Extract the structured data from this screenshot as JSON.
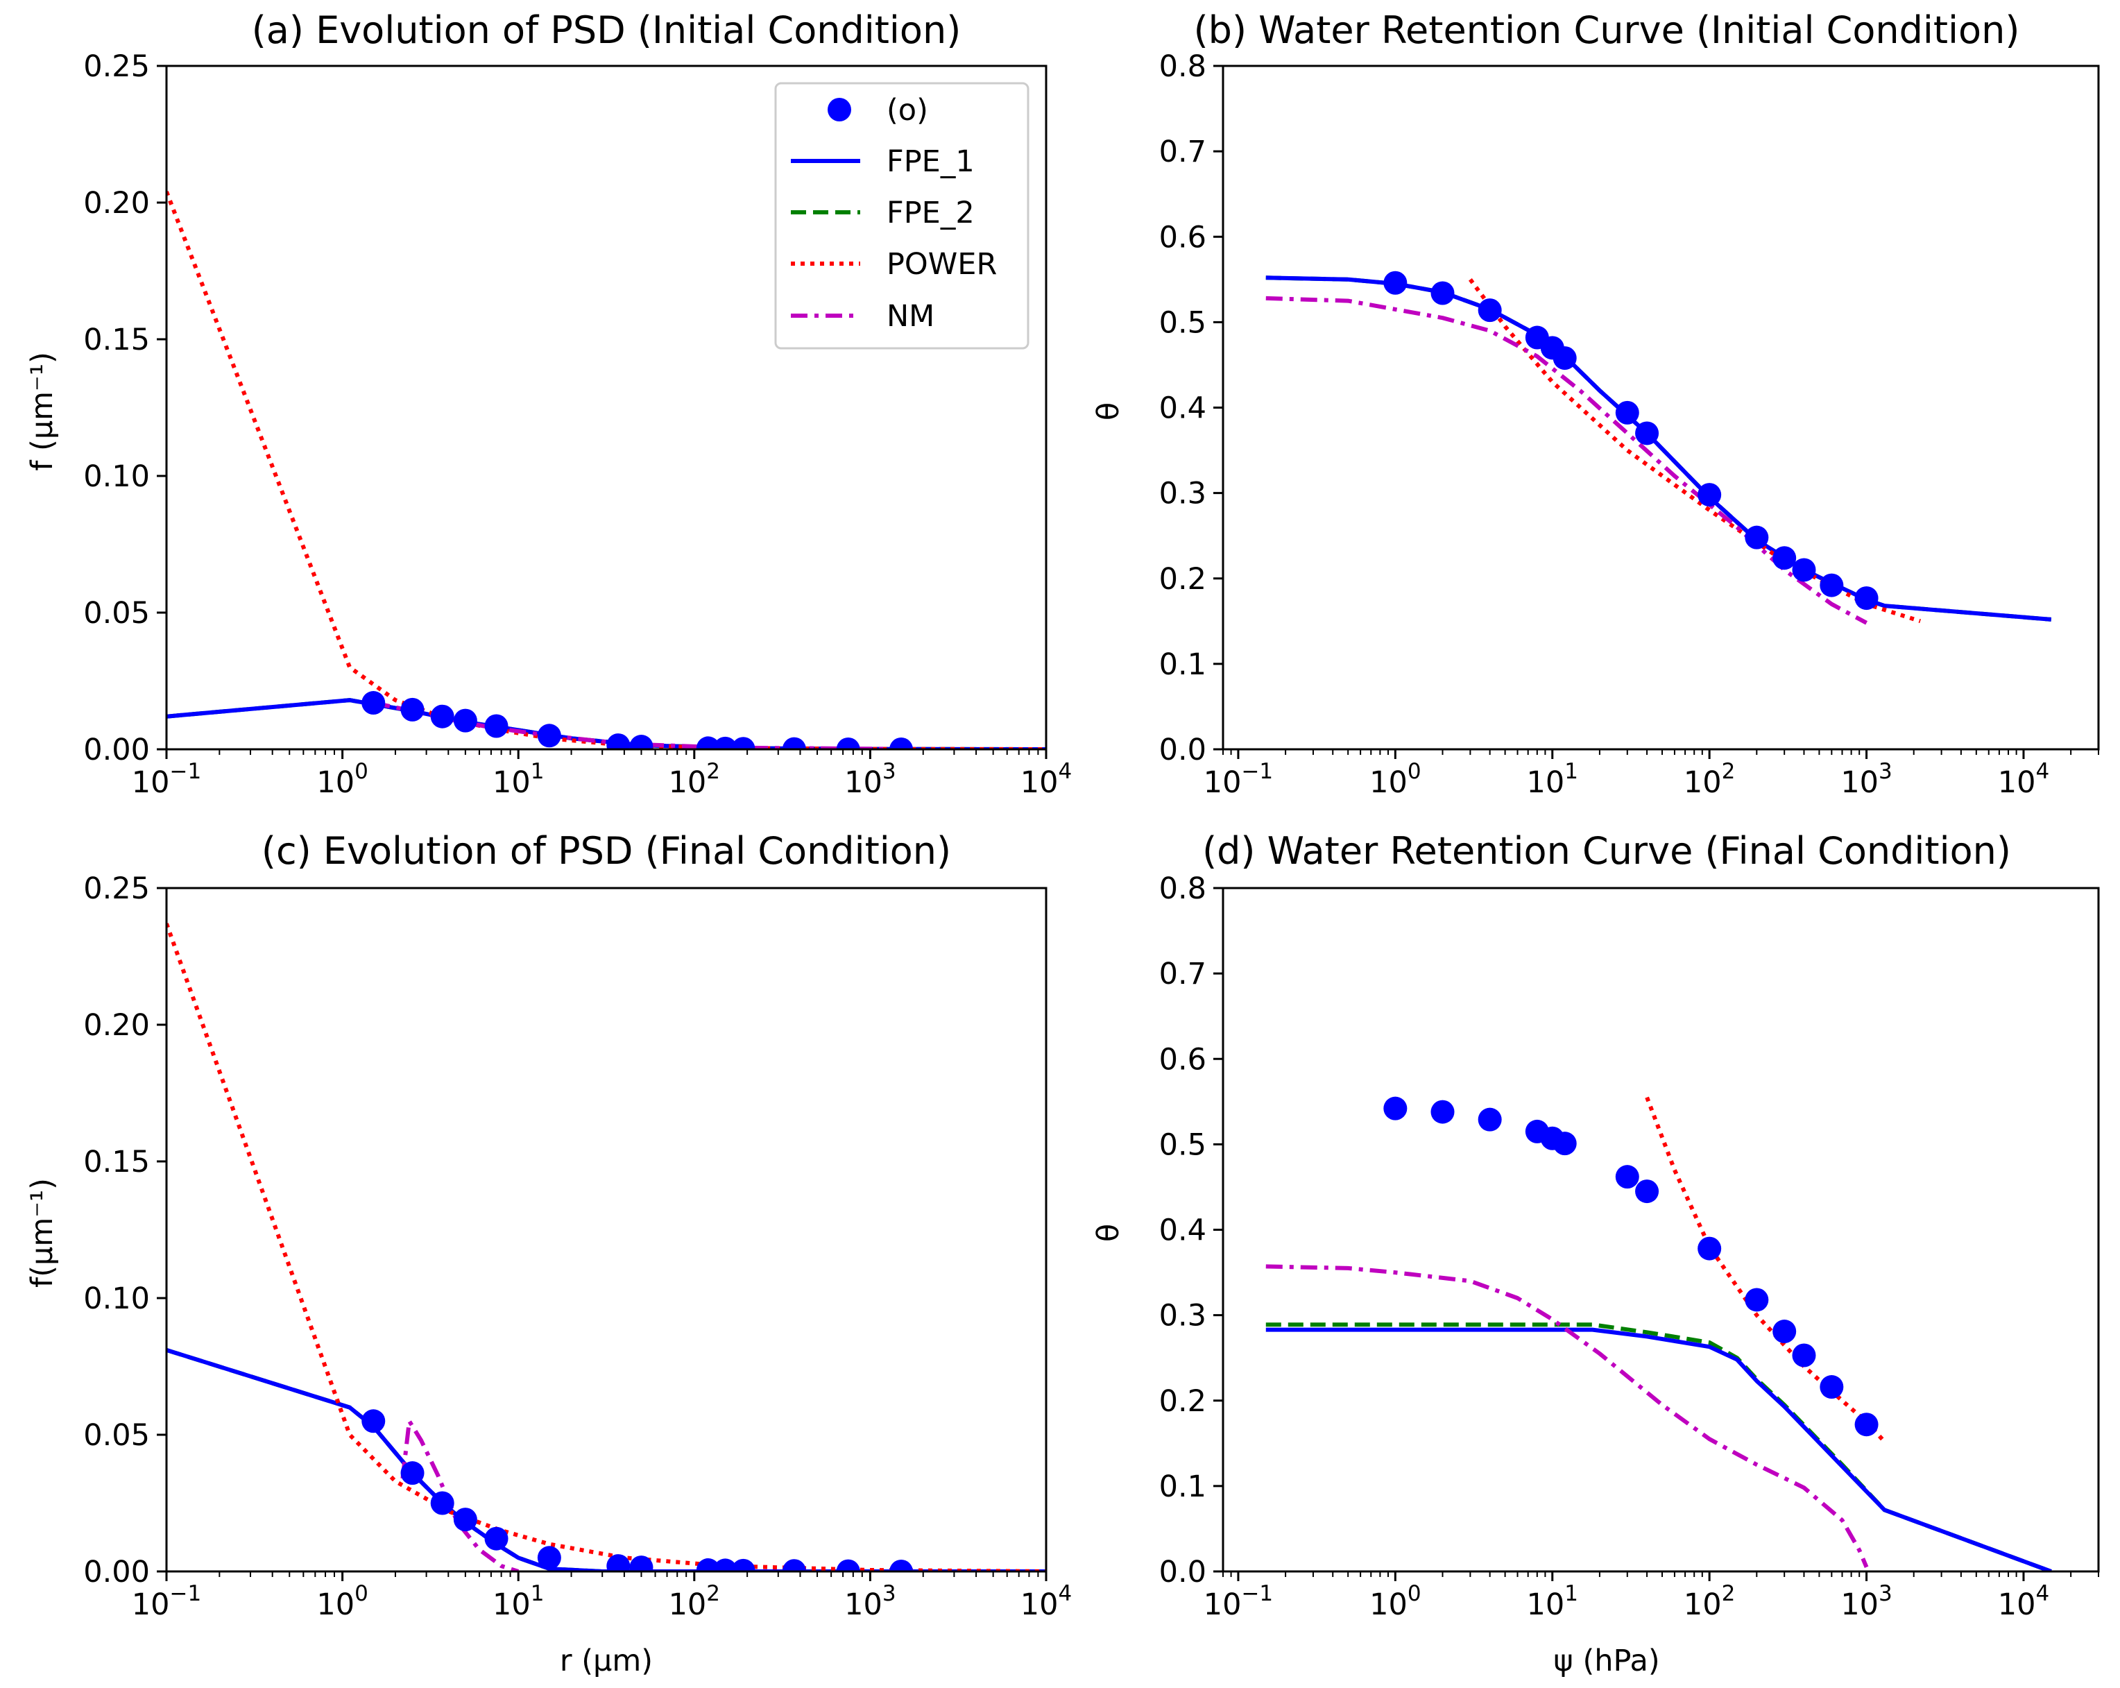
{
  "legend": {
    "entries": [
      {
        "key": "obs",
        "label": "(o)",
        "style": "marker",
        "color": "#0000ff"
      },
      {
        "key": "fpe1",
        "label": "FPE_1",
        "style": "solid",
        "color": "#0000ff"
      },
      {
        "key": "fpe2",
        "label": "FPE_2",
        "style": "dashed",
        "color": "#008000"
      },
      {
        "key": "power",
        "label": "POWER",
        "style": "dotted",
        "color": "#ff0000"
      },
      {
        "key": "nm",
        "label": "NM",
        "style": "dashdot",
        "color": "#bf00bf"
      }
    ],
    "placement": "upper-right of panel (a)"
  },
  "chart_data": [
    {
      "id": "a",
      "type": "line",
      "title": "(a) Evolution of PSD (Initial Condition)",
      "xlabel": "",
      "ylabel": "f (μm⁻¹)",
      "xscale": "log",
      "xlim": [
        0.1,
        10000
      ],
      "ylim": [
        0,
        0.25
      ],
      "xticks": [
        0.1,
        1,
        10,
        100,
        1000,
        10000
      ],
      "xtick_labels": [
        [
          "10",
          "−1"
        ],
        [
          "10",
          "0"
        ],
        [
          "10",
          "1"
        ],
        [
          "10",
          "2"
        ],
        [
          "10",
          "3"
        ],
        [
          "10",
          "4"
        ]
      ],
      "yticks": [
        0,
        0.05,
        0.1,
        0.15,
        0.2,
        0.25
      ],
      "ytick_labels": [
        "0.00",
        "0.05",
        "0.10",
        "0.15",
        "0.20",
        "0.25"
      ],
      "series": [
        {
          "key": "fpe2",
          "x": [
            0.1,
            1.1,
            2.5,
            5,
            10,
            20,
            50,
            200,
            1000,
            10000
          ],
          "y": [
            0.012,
            0.018,
            0.014,
            0.01,
            0.007,
            0.004,
            0.0015,
            0.0004,
            0.0001,
            0.0
          ]
        },
        {
          "key": "fpe1",
          "x": [
            0.1,
            1.1,
            2.5,
            5,
            10,
            20,
            50,
            200,
            1000,
            10000
          ],
          "y": [
            0.012,
            0.018,
            0.014,
            0.01,
            0.007,
            0.004,
            0.0015,
            0.0004,
            0.0001,
            0.0
          ]
        },
        {
          "key": "power",
          "x": [
            0.1,
            1.1,
            2,
            4,
            8,
            15,
            40,
            150,
            1000,
            10000
          ],
          "y": [
            0.204,
            0.03,
            0.018,
            0.011,
            0.007,
            0.004,
            0.0015,
            0.0005,
            0.0001,
            0.0
          ]
        },
        {
          "key": "nm",
          "x": [
            1.5,
            2.5,
            4,
            7,
            15,
            40,
            150,
            1500
          ],
          "y": [
            0.017,
            0.014,
            0.011,
            0.008,
            0.005,
            0.002,
            0.0006,
            0.0001
          ]
        },
        {
          "key": "obs",
          "x": [
            1.5,
            2.5,
            3.7,
            5,
            7.5,
            15,
            37,
            50,
            120,
            150,
            190,
            370,
            750,
            1500
          ],
          "y": [
            0.017,
            0.0145,
            0.012,
            0.0105,
            0.0085,
            0.005,
            0.0015,
            0.001,
            0.0004,
            0.0003,
            0.0002,
            0.0001,
            0.0,
            0.0
          ]
        }
      ]
    },
    {
      "id": "b",
      "type": "line",
      "title": "(b) Water Retention Curve (Initial Condition)",
      "xlabel": "",
      "ylabel": "θ",
      "xscale": "log",
      "xlim": [
        0.08,
        30000
      ],
      "ylim": [
        0,
        0.8
      ],
      "xticks": [
        0.1,
        1,
        10,
        100,
        1000,
        10000
      ],
      "xtick_labels": [
        [
          "10",
          "−1"
        ],
        [
          "10",
          "0"
        ],
        [
          "10",
          "1"
        ],
        [
          "10",
          "2"
        ],
        [
          "10",
          "3"
        ],
        [
          "10",
          "4"
        ]
      ],
      "yticks": [
        0,
        0.1,
        0.2,
        0.3,
        0.4,
        0.5,
        0.6,
        0.7,
        0.8
      ],
      "ytick_labels": [
        "0.0",
        "0.1",
        "0.2",
        "0.3",
        "0.4",
        "0.5",
        "0.6",
        "0.7",
        "0.8"
      ],
      "series": [
        {
          "key": "fpe2",
          "x": [
            0.15,
            0.5,
            1,
            2,
            4,
            8,
            12,
            20,
            40,
            100,
            200,
            400,
            1000,
            1300,
            15000
          ],
          "y": [
            0.552,
            0.55,
            0.545,
            0.535,
            0.515,
            0.485,
            0.46,
            0.42,
            0.37,
            0.295,
            0.245,
            0.21,
            0.175,
            0.168,
            0.152
          ]
        },
        {
          "key": "fpe1",
          "x": [
            0.15,
            0.5,
            1,
            2,
            4,
            8,
            12,
            20,
            40,
            100,
            200,
            400,
            1000,
            1300,
            15000
          ],
          "y": [
            0.552,
            0.55,
            0.545,
            0.535,
            0.515,
            0.485,
            0.46,
            0.42,
            0.37,
            0.295,
            0.245,
            0.21,
            0.175,
            0.168,
            0.152
          ]
        },
        {
          "key": "power",
          "x": [
            3,
            5,
            10,
            30,
            100,
            300,
            1000,
            2200
          ],
          "y": [
            0.55,
            0.495,
            0.43,
            0.35,
            0.28,
            0.22,
            0.17,
            0.15
          ]
        },
        {
          "key": "nm",
          "x": [
            0.15,
            0.5,
            1,
            2,
            4,
            8,
            15,
            30,
            60,
            150,
            300,
            600,
            1000
          ],
          "y": [
            0.528,
            0.525,
            0.515,
            0.505,
            0.49,
            0.46,
            0.42,
            0.37,
            0.32,
            0.26,
            0.21,
            0.17,
            0.148
          ]
        },
        {
          "key": "obs",
          "x": [
            1,
            2,
            4,
            8,
            10,
            12,
            30,
            40,
            100,
            200,
            300,
            400,
            600,
            1000
          ],
          "y": [
            0.546,
            0.534,
            0.514,
            0.482,
            0.47,
            0.458,
            0.394,
            0.37,
            0.298,
            0.248,
            0.224,
            0.21,
            0.192,
            0.177
          ]
        }
      ]
    },
    {
      "id": "c",
      "type": "line",
      "title": "(c) Evolution of PSD (Final Condition)",
      "xlabel": "r (μm)",
      "ylabel": "f(μm⁻¹)",
      "xscale": "log",
      "xlim": [
        0.1,
        10000
      ],
      "ylim": [
        0,
        0.25
      ],
      "xticks": [
        0.1,
        1,
        10,
        100,
        1000,
        10000
      ],
      "xtick_labels": [
        [
          "10",
          "−1"
        ],
        [
          "10",
          "0"
        ],
        [
          "10",
          "1"
        ],
        [
          "10",
          "2"
        ],
        [
          "10",
          "3"
        ],
        [
          "10",
          "4"
        ]
      ],
      "yticks": [
        0,
        0.05,
        0.1,
        0.15,
        0.2,
        0.25
      ],
      "ytick_labels": [
        "0.00",
        "0.05",
        "0.10",
        "0.15",
        "0.20",
        "0.25"
      ],
      "series": [
        {
          "key": "fpe2",
          "x": [
            0.1,
            1.1,
            1.5,
            2.5,
            3.7,
            5,
            7.5,
            10,
            15,
            30,
            10000
          ],
          "y": [
            0.081,
            0.06,
            0.053,
            0.036,
            0.025,
            0.018,
            0.01,
            0.005,
            0.001,
            0.0,
            0.0
          ]
        },
        {
          "key": "fpe1",
          "x": [
            0.1,
            1.1,
            1.5,
            2.5,
            3.7,
            5,
            7.5,
            10,
            15,
            30,
            10000
          ],
          "y": [
            0.081,
            0.06,
            0.053,
            0.036,
            0.025,
            0.018,
            0.01,
            0.005,
            0.001,
            0.0,
            0.0
          ]
        },
        {
          "key": "power",
          "x": [
            0.1,
            1.1,
            2,
            4,
            8,
            15,
            40,
            150,
            1000,
            10000
          ],
          "y": [
            0.237,
            0.05,
            0.033,
            0.022,
            0.015,
            0.01,
            0.005,
            0.002,
            0.0005,
            0.0
          ]
        },
        {
          "key": "nm",
          "x": [
            2.2,
            2.4,
            2.8,
            3.5,
            4.5,
            6,
            8,
            10
          ],
          "y": [
            0.034,
            0.055,
            0.048,
            0.035,
            0.018,
            0.008,
            0.002,
            0.0
          ]
        },
        {
          "key": "obs",
          "x": [
            1.5,
            2.5,
            3.7,
            5,
            7.5,
            15,
            37,
            50,
            120,
            150,
            190,
            370,
            750,
            1500
          ],
          "y": [
            0.055,
            0.036,
            0.025,
            0.019,
            0.012,
            0.005,
            0.002,
            0.0015,
            0.0005,
            0.0004,
            0.0003,
            0.0002,
            0.0001,
            0.0
          ]
        }
      ]
    },
    {
      "id": "d",
      "type": "line",
      "title": "(d) Water Retention Curve (Final Condition)",
      "xlabel": "ψ (hPa)",
      "ylabel": "θ",
      "xscale": "log",
      "xlim": [
        0.08,
        30000
      ],
      "ylim": [
        0,
        0.8
      ],
      "xticks": [
        0.1,
        1,
        10,
        100,
        1000,
        10000
      ],
      "xtick_labels": [
        [
          "10",
          "−1"
        ],
        [
          "10",
          "0"
        ],
        [
          "10",
          "1"
        ],
        [
          "10",
          "2"
        ],
        [
          "10",
          "3"
        ],
        [
          "10",
          "4"
        ]
      ],
      "yticks": [
        0,
        0.1,
        0.2,
        0.3,
        0.4,
        0.5,
        0.6,
        0.7,
        0.8
      ],
      "ytick_labels": [
        "0.0",
        "0.1",
        "0.2",
        "0.3",
        "0.4",
        "0.5",
        "0.6",
        "0.7",
        "0.8"
      ],
      "series": [
        {
          "key": "fpe2",
          "x": [
            0.15,
            1,
            10,
            18,
            40,
            100,
            150,
            200,
            300,
            700,
            1300,
            15000
          ],
          "y": [
            0.289,
            0.289,
            0.289,
            0.289,
            0.28,
            0.268,
            0.25,
            0.225,
            0.195,
            0.125,
            0.072,
            0.0
          ]
        },
        {
          "key": "fpe1",
          "x": [
            0.15,
            1,
            10,
            18,
            40,
            100,
            150,
            200,
            300,
            700,
            1300,
            15000
          ],
          "y": [
            0.283,
            0.283,
            0.283,
            0.283,
            0.275,
            0.263,
            0.248,
            0.223,
            0.193,
            0.123,
            0.072,
            0.0
          ]
        },
        {
          "key": "power",
          "x": [
            40,
            60,
            100,
            200,
            400,
            700,
            1000,
            1300
          ],
          "y": [
            0.555,
            0.47,
            0.38,
            0.3,
            0.24,
            0.2,
            0.175,
            0.152
          ]
        },
        {
          "key": "nm",
          "x": [
            0.15,
            0.5,
            1,
            3,
            6,
            10,
            20,
            50,
            100,
            200,
            400,
            700,
            900,
            1000
          ],
          "y": [
            0.357,
            0.355,
            0.35,
            0.34,
            0.32,
            0.295,
            0.255,
            0.195,
            0.155,
            0.125,
            0.098,
            0.06,
            0.025,
            0.005
          ]
        },
        {
          "key": "obs",
          "x": [
            1,
            2,
            4,
            8,
            10,
            12,
            30,
            40,
            100,
            200,
            300,
            400,
            600,
            1000
          ],
          "y": [
            0.542,
            0.538,
            0.529,
            0.515,
            0.507,
            0.501,
            0.462,
            0.445,
            0.378,
            0.318,
            0.281,
            0.253,
            0.216,
            0.172
          ]
        }
      ]
    }
  ]
}
